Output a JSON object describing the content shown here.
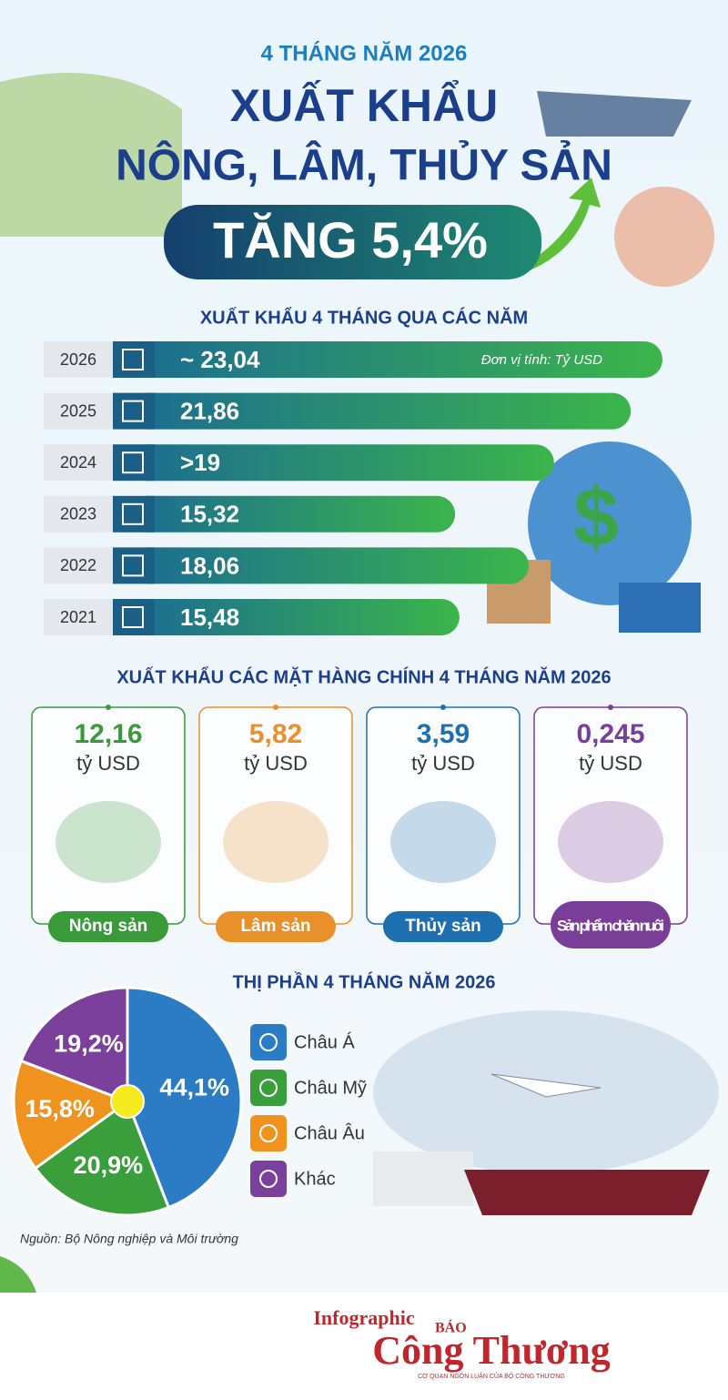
{
  "header": {
    "kicker": "4 THÁNG NĂM 2026",
    "title_line1": "XUẤT KHẨU",
    "title_line2": "NÔNG, LÂM, THỦY SẢN",
    "highlight": "TĂNG 5,4%"
  },
  "chart_data": [
    {
      "type": "bar",
      "title": "XUẤT KHẨU 4 THÁNG QUA CÁC NĂM",
      "note": "Đơn vị tính: Tỷ USD",
      "categories": [
        "2026",
        "2025",
        "2024",
        "2023",
        "2022",
        "2021"
      ],
      "values": [
        23.04,
        21.86,
        19,
        15.32,
        18.06,
        15.48
      ],
      "value_labels": [
        "~ 23,04",
        "21,86",
        ">19",
        "15,32",
        "18,06",
        "15,48"
      ],
      "colors": [
        "#1b6f8f",
        "#3cb54a"
      ]
    },
    {
      "type": "pie",
      "title": "THỊ PHẦN 4 THÁNG NĂM 2026",
      "categories": [
        "Châu Á",
        "Châu Mỹ",
        "Châu Âu",
        "Khác"
      ],
      "values": [
        44.1,
        20.9,
        15.8,
        19.2
      ],
      "value_labels": [
        "44,1%",
        "20,9%",
        "15,8%",
        "19,2%"
      ],
      "colors": [
        "#2b7cc4",
        "#3a9f3a",
        "#f0931e",
        "#7b3f9c"
      ]
    }
  ],
  "products": {
    "title": "XUẤT KHẨU CÁC MẶT HÀNG CHÍNH 4 THÁNG NĂM 2026",
    "items": [
      {
        "value": "12,16",
        "unit": "tỷ USD",
        "name": "Nông sản",
        "color": "#3a9a3a"
      },
      {
        "value": "5,82",
        "unit": "tỷ USD",
        "name": "Lâm sản",
        "color": "#e8902a"
      },
      {
        "value": "3,59",
        "unit": "tỷ USD",
        "name": "Thủy sản",
        "color": "#1e6fb0"
      },
      {
        "value": "0,245",
        "unit": "tỷ USD",
        "name": "Sản phẩm chăn nuôi",
        "color": "#7a3d98"
      }
    ]
  },
  "source": "Nguồn: Bộ Nông nghiệp và Môi trường",
  "footer": {
    "label": "Infographic",
    "brand_small": "BÁO",
    "brand": "Công Thương",
    "tagline": "CƠ QUAN NGÔN LUẬN CỦA BỘ CÔNG THƯƠNG"
  }
}
